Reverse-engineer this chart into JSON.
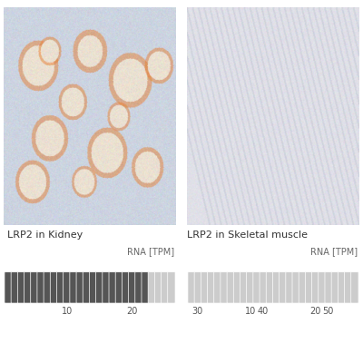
{
  "title_left": "LRP2 in Kidney",
  "title_right": "LRP2 in Skeletal muscle",
  "rna_label": "RNA [TPM]",
  "tick_labels": [
    10,
    20,
    30,
    40,
    50
  ],
  "n_segments": 26,
  "kidney_fill_count": 22,
  "muscle_fill_count": 0,
  "dark_color": "#555555",
  "light_color": "#cccccc",
  "background_color": "#ffffff",
  "title_fontsize": 8.0,
  "tick_fontsize": 7.0,
  "rna_fontsize": 7.0,
  "fig_width": 4.0,
  "fig_height": 4.0
}
